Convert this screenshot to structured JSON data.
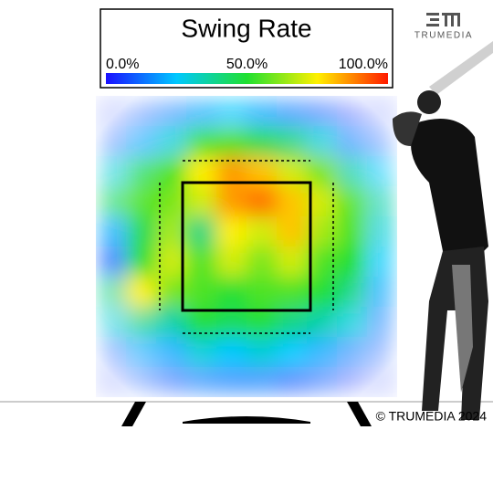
{
  "chart_data": {
    "type": "heatmap",
    "title": "Swing Rate",
    "clim": [
      0,
      100
    ],
    "cticks": [
      {
        "value": 0,
        "label": "0.0%"
      },
      {
        "value": 50,
        "label": "50.0%"
      },
      {
        "value": 100,
        "label": "100.0%"
      }
    ],
    "colors": [
      "#1a10ff",
      "#00c8ff",
      "#20e030",
      "#fff000",
      "#ff1a00"
    ],
    "values": [
      [
        5,
        10,
        15,
        20,
        25,
        20,
        15,
        10,
        5,
        5
      ],
      [
        10,
        20,
        30,
        50,
        55,
        45,
        40,
        30,
        15,
        10
      ],
      [
        30,
        45,
        55,
        75,
        85,
        80,
        70,
        60,
        35,
        25
      ],
      [
        45,
        55,
        60,
        70,
        85,
        90,
        80,
        70,
        55,
        35
      ],
      [
        20,
        45,
        65,
        40,
        75,
        70,
        80,
        65,
        55,
        30
      ],
      [
        10,
        50,
        70,
        55,
        70,
        60,
        70,
        55,
        50,
        25
      ],
      [
        40,
        75,
        60,
        55,
        50,
        55,
        55,
        50,
        40,
        20
      ],
      [
        30,
        40,
        35,
        50,
        45,
        50,
        40,
        35,
        30,
        15
      ],
      [
        10,
        20,
        20,
        30,
        25,
        30,
        25,
        20,
        15,
        10
      ],
      [
        5,
        10,
        10,
        15,
        15,
        15,
        10,
        10,
        5,
        5
      ]
    ]
  },
  "brand": {
    "logo": "TRUMEDIA",
    "credit": "© TRUMEDIA 2024"
  }
}
